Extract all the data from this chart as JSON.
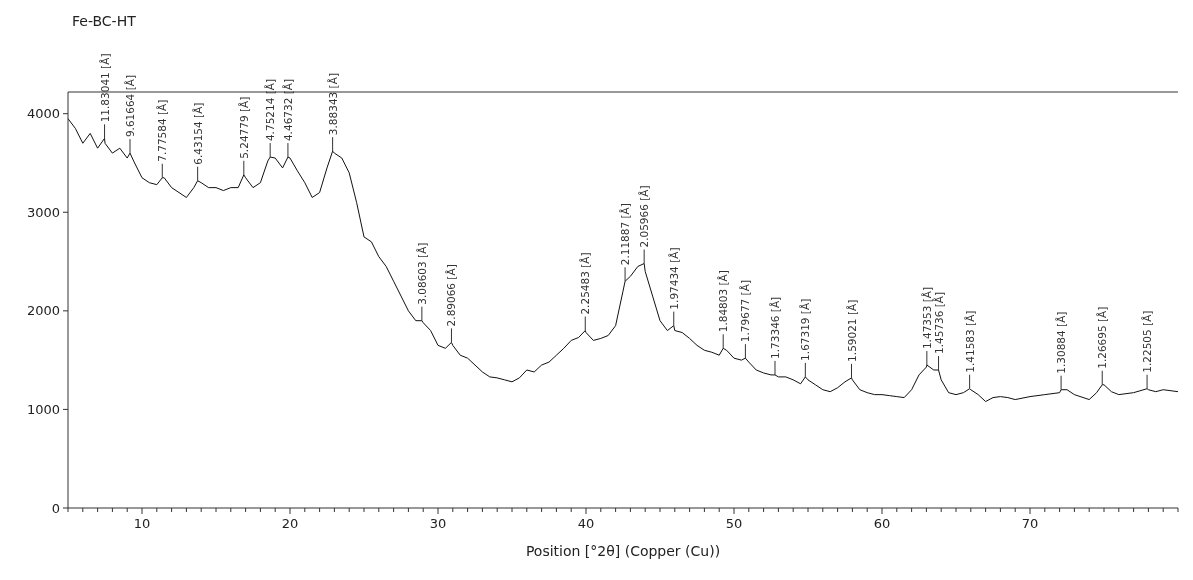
{
  "chart_data": {
    "type": "line",
    "title": "Fe-BC-HT",
    "xlabel": "Position [°2θ] (Copper (Cu))",
    "xlim": [
      5,
      80
    ],
    "ylim": [
      0,
      4220
    ],
    "yticks": [
      0,
      1000,
      2000,
      3000,
      4000
    ],
    "xticks": [
      {
        "value": 5,
        "label": null
      },
      {
        "value": 6,
        "label": null
      },
      {
        "value": 7,
        "label": null
      },
      {
        "value": 8,
        "label": null
      },
      {
        "value": 9,
        "label": null
      },
      10,
      {
        "value": 11,
        "label": null
      },
      {
        "value": 12,
        "label": null
      },
      {
        "value": 13,
        "label": null
      },
      {
        "value": 14,
        "label": null
      },
      {
        "value": 15,
        "label": null
      },
      {
        "value": 16,
        "label": null
      },
      {
        "value": 17,
        "label": null
      },
      {
        "value": 18,
        "label": null
      },
      {
        "value": 19,
        "label": null
      },
      20,
      {
        "value": 21,
        "label": null
      },
      {
        "value": 22,
        "label": null
      },
      {
        "value": 23,
        "label": null
      },
      {
        "value": 24,
        "label": null
      },
      {
        "value": 25,
        "label": null
      },
      {
        "value": 26,
        "label": null
      },
      {
        "value": 27,
        "label": null
      },
      {
        "value": 28,
        "label": null
      },
      {
        "value": 29,
        "label": null
      },
      30,
      {
        "value": 31,
        "label": null
      },
      {
        "value": 32,
        "label": null
      },
      {
        "value": 33,
        "label": null
      },
      {
        "value": 34,
        "label": null
      },
      {
        "value": 35,
        "label": null
      },
      {
        "value": 36,
        "label": null
      },
      {
        "value": 37,
        "label": null
      },
      {
        "value": 38,
        "label": null
      },
      {
        "value": 39,
        "label": null
      },
      40,
      {
        "value": 41,
        "label": null
      },
      {
        "value": 42,
        "label": null
      },
      {
        "value": 43,
        "label": null
      },
      {
        "value": 44,
        "label": null
      },
      {
        "value": 45,
        "label": null
      },
      {
        "value": 46,
        "label": null
      },
      {
        "value": 47,
        "label": null
      },
      {
        "value": 48,
        "label": null
      },
      {
        "value": 49,
        "label": null
      },
      50,
      {
        "value": 51,
        "label": null
      },
      {
        "value": 52,
        "label": null
      },
      {
        "value": 53,
        "label": null
      },
      {
        "value": 54,
        "label": null
      },
      {
        "value": 55,
        "label": null
      },
      {
        "value": 56,
        "label": null
      },
      {
        "value": 57,
        "label": null
      },
      {
        "value": 58,
        "label": null
      },
      {
        "value": 59,
        "label": null
      },
      60,
      {
        "value": 61,
        "label": null
      },
      {
        "value": 62,
        "label": null
      },
      {
        "value": 63,
        "label": null
      },
      {
        "value": 64,
        "label": null
      },
      {
        "value": 65,
        "label": null
      },
      {
        "value": 66,
        "label": null
      },
      {
        "value": 67,
        "label": null
      },
      {
        "value": 68,
        "label": null
      },
      {
        "value": 69,
        "label": null
      },
      70,
      {
        "value": 71,
        "label": null
      },
      {
        "value": 72,
        "label": null
      },
      {
        "value": 73,
        "label": null
      },
      {
        "value": 74,
        "label": null
      },
      {
        "value": 75,
        "label": null
      },
      {
        "value": 76,
        "label": null
      },
      {
        "value": 77,
        "label": null
      },
      {
        "value": 78,
        "label": null
      },
      {
        "value": 79,
        "label": null
      },
      {
        "value": 80,
        "label": null
      }
    ],
    "grid": false,
    "marker": "none",
    "line_style": "solid",
    "series": [
      {
        "color": "#111111",
        "x": [
          5,
          5.5,
          6,
          6.5,
          7,
          7.47,
          7.5,
          8,
          8.5,
          9,
          9.19,
          9.5,
          10,
          10.5,
          11,
          11.37,
          11.5,
          12,
          12.5,
          13,
          13.5,
          13.76,
          14,
          14.5,
          15,
          15.5,
          16,
          16.5,
          16.88,
          17,
          17.5,
          18,
          18.5,
          18.66,
          19,
          19.5,
          19.86,
          20,
          20.5,
          21,
          21.5,
          22,
          22.5,
          22.88,
          23,
          23.5,
          24,
          24.5,
          25,
          25.5,
          26,
          26.5,
          27,
          27.5,
          28,
          28.5,
          28.91,
          29,
          29.5,
          30,
          30.5,
          30.91,
          31,
          31.5,
          32,
          32.5,
          33,
          33.5,
          34,
          34.5,
          35,
          35.5,
          36,
          36.5,
          37,
          37.5,
          38,
          38.5,
          39,
          39.5,
          39.95,
          40,
          40.5,
          41,
          41.5,
          42,
          42.5,
          42.64,
          43,
          43.5,
          43.93,
          44,
          44.5,
          45,
          45.5,
          45.93,
          46,
          46.5,
          47,
          47.5,
          48,
          48.5,
          49,
          49.27,
          49.5,
          50,
          50.5,
          50.77,
          51,
          51.5,
          52,
          52.5,
          52.77,
          53,
          53.5,
          54,
          54.5,
          54.82,
          55,
          55.5,
          56,
          56.5,
          57,
          57.5,
          57.94,
          58,
          58.5,
          59,
          59.5,
          60,
          60.5,
          61,
          61.5,
          62,
          62.5,
          63,
          63.03,
          63.5,
          63.82,
          64,
          64.5,
          65,
          65.5,
          65.92,
          66,
          66.5,
          67,
          67.5,
          68,
          68.5,
          69,
          70,
          71,
          72,
          72.1,
          72.5,
          73,
          74,
          74.5,
          74.88,
          75,
          75.5,
          76,
          77,
          77.91,
          78,
          78.5,
          79,
          80
        ],
        "values": [
          3950,
          3850,
          3700,
          3800,
          3650,
          3750,
          3700,
          3600,
          3650,
          3550,
          3600,
          3500,
          3350,
          3300,
          3280,
          3350,
          3350,
          3250,
          3200,
          3150,
          3250,
          3320,
          3300,
          3250,
          3250,
          3220,
          3250,
          3250,
          3380,
          3350,
          3250,
          3300,
          3520,
          3560,
          3550,
          3450,
          3560,
          3550,
          3420,
          3300,
          3150,
          3200,
          3450,
          3620,
          3600,
          3550,
          3400,
          3100,
          2750,
          2700,
          2550,
          2450,
          2300,
          2150,
          2000,
          1900,
          1900,
          1880,
          1800,
          1650,
          1620,
          1680,
          1650,
          1550,
          1520,
          1450,
          1380,
          1330,
          1320,
          1300,
          1280,
          1320,
          1400,
          1380,
          1450,
          1480,
          1550,
          1620,
          1700,
          1730,
          1800,
          1780,
          1700,
          1720,
          1750,
          1850,
          2200,
          2300,
          2350,
          2450,
          2480,
          2400,
          2150,
          1900,
          1800,
          1850,
          1800,
          1780,
          1720,
          1650,
          1600,
          1580,
          1550,
          1620,
          1600,
          1520,
          1500,
          1520,
          1480,
          1400,
          1370,
          1350,
          1350,
          1330,
          1330,
          1300,
          1260,
          1330,
          1300,
          1250,
          1200,
          1180,
          1220,
          1280,
          1320,
          1300,
          1200,
          1170,
          1150,
          1150,
          1140,
          1130,
          1120,
          1200,
          1350,
          1430,
          1450,
          1400,
          1400,
          1300,
          1170,
          1150,
          1170,
          1210,
          1200,
          1150,
          1080,
          1120,
          1130,
          1120,
          1100,
          1130,
          1150,
          1170,
          1200,
          1200,
          1150,
          1100,
          1170,
          1250,
          1250,
          1180,
          1150,
          1170,
          1210,
          1200,
          1180,
          1200,
          1180
        ]
      }
    ],
    "annotations": [
      {
        "text": "11.83041 [Å]",
        "x": 7.47,
        "y": 3750
      },
      {
        "text": "9.61664 [Å]",
        "x": 9.19,
        "y": 3600
      },
      {
        "text": "7.77584 [Å]",
        "x": 11.37,
        "y": 3350
      },
      {
        "text": "6.43154 [Å]",
        "x": 13.76,
        "y": 3320
      },
      {
        "text": "5.24779 [Å]",
        "x": 16.88,
        "y": 3380
      },
      {
        "text": "4.75214 [Å]",
        "x": 18.66,
        "y": 3560
      },
      {
        "text": "4.46732 [Å]",
        "x": 19.86,
        "y": 3560
      },
      {
        "text": "3.88343 [Å]",
        "x": 22.88,
        "y": 3620
      },
      {
        "text": "3.08603 [Å]",
        "x": 28.91,
        "y": 1900
      },
      {
        "text": "2.89066 [Å]",
        "x": 30.91,
        "y": 1680
      },
      {
        "text": "2.25483 [Å]",
        "x": 39.95,
        "y": 1800
      },
      {
        "text": "2.11887 [Å]",
        "x": 42.64,
        "y": 2300
      },
      {
        "text": "2.05966 [Å]",
        "x": 43.93,
        "y": 2480
      },
      {
        "text": "1.97434 [Å]",
        "x": 45.93,
        "y": 1850
      },
      {
        "text": "1.84803 [Å]",
        "x": 49.27,
        "y": 1620
      },
      {
        "text": "1.79677 [Å]",
        "x": 50.77,
        "y": 1520
      },
      {
        "text": "1.73346 [Å]",
        "x": 52.77,
        "y": 1350
      },
      {
        "text": "1.67319 [Å]",
        "x": 54.82,
        "y": 1330
      },
      {
        "text": "1.59021 [Å]",
        "x": 57.94,
        "y": 1320
      },
      {
        "text": "1.47353 [Å]",
        "x": 63.03,
        "y": 1450
      },
      {
        "text": "1.45736 [Å]",
        "x": 63.82,
        "y": 1400
      },
      {
        "text": "1.41583 [Å]",
        "x": 65.92,
        "y": 1210
      },
      {
        "text": "1.30884 [Å]",
        "x": 72.1,
        "y": 1200
      },
      {
        "text": "1.26695 [Å]",
        "x": 74.88,
        "y": 1250
      },
      {
        "text": "1.22505 [Å]",
        "x": 77.91,
        "y": 1210
      }
    ]
  }
}
